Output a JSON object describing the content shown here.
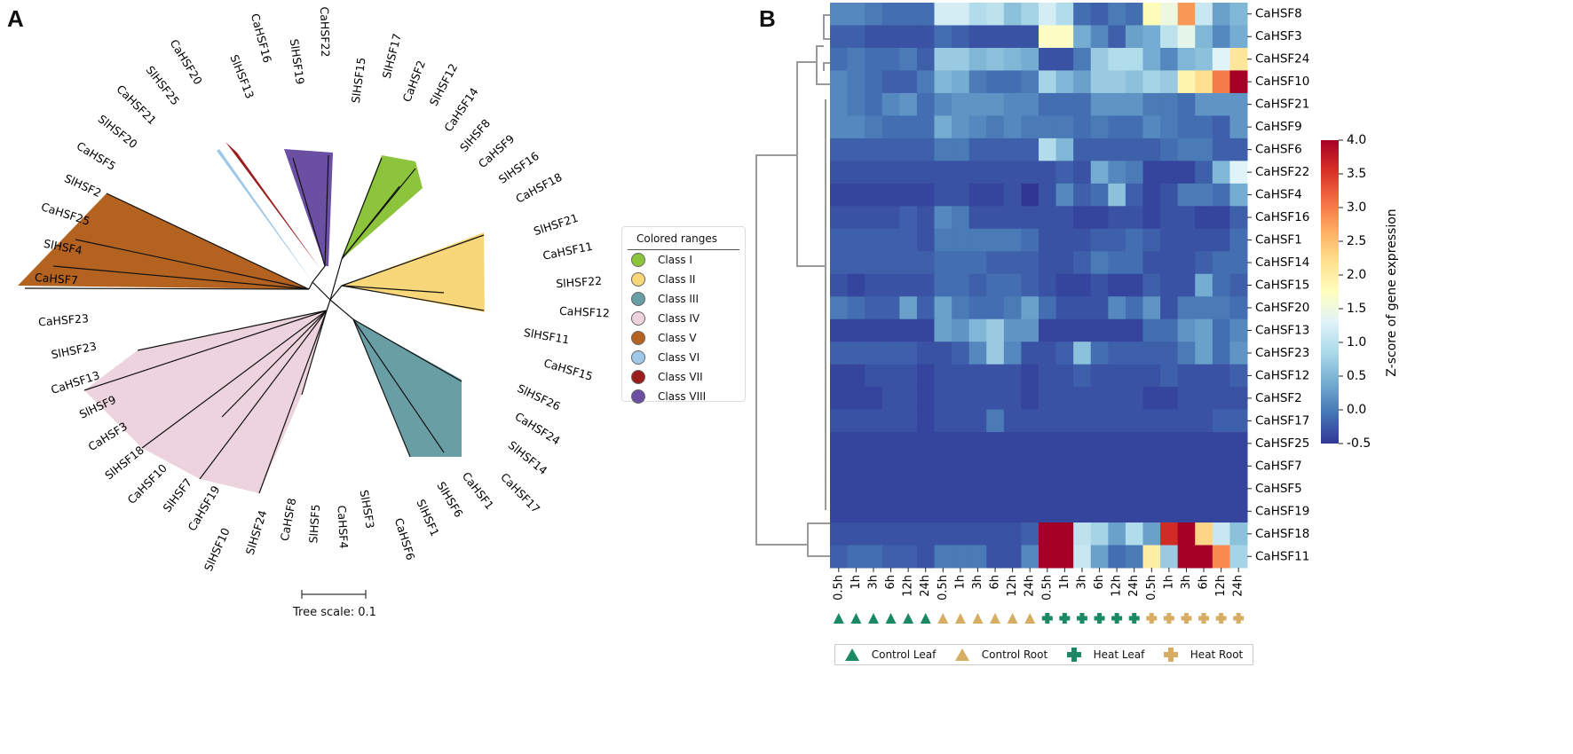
{
  "panels": {
    "a": "A",
    "b": "B"
  },
  "tree": {
    "scale_label": "Tree scale: 0.1",
    "legend_title": "Colored ranges",
    "classes": [
      {
        "label": "Class I",
        "color": "#8cc43c"
      },
      {
        "label": "Class II",
        "color": "#f7d77a"
      },
      {
        "label": "Class III",
        "color": "#6a9ea5"
      },
      {
        "label": "Class IV",
        "color": "#ecd3dd"
      },
      {
        "label": "Class V",
        "color": "#b3631f"
      },
      {
        "label": "Class VI",
        "color": "#9fc8e8"
      },
      {
        "label": "Class VII",
        "color": "#9b1c1c"
      },
      {
        "label": "Class VIII",
        "color": "#6a4fa3"
      }
    ],
    "leaves": [
      "CaHSF22",
      "SlHSF19",
      "CaHSF16",
      "SlHSF13",
      "CaHSF20",
      "SlHSF25",
      "CaHSF21",
      "SlHSF20",
      "CaHSF5",
      "SlHSF2",
      "CaHSF25",
      "SlHSF4",
      "CaHSF7",
      "SlHSF15",
      "SlHSF17",
      "CaHSF2",
      "SlHSF12",
      "CaHSF14",
      "SlHSF8",
      "CaHSF9",
      "SlHSF16",
      "CaHSF18",
      "SlHSF21",
      "CaHSF11",
      "SlHSF22",
      "CaHSF12",
      "SlHSF11",
      "CaHSF15",
      "SlHSF26",
      "CaHSF24",
      "SlHSF14",
      "CaHSF17",
      "CaHSF1",
      "SlHSF6",
      "SlHSF1",
      "CaHSF6",
      "SlHSF3",
      "CaHSF4",
      "CaHSF8",
      "SlHSF5",
      "SlHSF24",
      "SlHSF10",
      "CaHSF19",
      "SlHSF7",
      "CaHSF10",
      "SlHSF18",
      "CaHSF3",
      "SlHSF9",
      "CaHSF13",
      "SlHSF23",
      "CaHSF23"
    ]
  },
  "chart_data": {
    "type": "heatmap",
    "colorbar_label": "Z-score of gene expression",
    "vmin": -0.5,
    "vmax": 4.0,
    "colorbar_ticks": [
      "4.0",
      "3.5",
      "3.0",
      "2.5",
      "2.0",
      "1.5",
      "1.0",
      "0.5",
      "0.0",
      "-0.5"
    ],
    "colormap": [
      "#313695",
      "#4575b4",
      "#74add1",
      "#abd9e9",
      "#e0f3f8",
      "#ffffbf",
      "#fee090",
      "#fdae61",
      "#f46d43",
      "#d73027",
      "#a50026"
    ],
    "columns": [
      "0.5h",
      "1h",
      "3h",
      "6h",
      "12h",
      "24h",
      "0.5h",
      "1h",
      "3h",
      "6h",
      "12h",
      "24h",
      "0.5h",
      "1h",
      "3h",
      "6h",
      "12h",
      "24h",
      "0.5h",
      "1h",
      "3h",
      "6h",
      "12h",
      "24h"
    ],
    "column_groups": [
      0,
      0,
      0,
      0,
      0,
      0,
      1,
      1,
      1,
      1,
      1,
      1,
      2,
      2,
      2,
      2,
      2,
      2,
      3,
      3,
      3,
      3,
      3,
      3
    ],
    "groups": [
      {
        "label": "Control Leaf",
        "marker": "triangle",
        "color": "#1b8a64"
      },
      {
        "label": "Control Root",
        "marker": "triangle",
        "color": "#d6ad62"
      },
      {
        "label": "Heat Leaf",
        "marker": "cross",
        "color": "#1b8a64"
      },
      {
        "label": "Heat Root",
        "marker": "cross",
        "color": "#d6ad62"
      }
    ],
    "rows": [
      "CaHSF8",
      "CaHSF3",
      "CaHSF24",
      "CaHSF10",
      "CaHSF21",
      "CaHSF9",
      "CaHSF6",
      "CaHSF22",
      "CaHSF4",
      "CaHSF16",
      "CaHSF1",
      "CaHSF14",
      "CaHSF15",
      "CaHSF20",
      "CaHSF13",
      "CaHSF23",
      "CaHSF12",
      "CaHSF2",
      "CaHSF17",
      "CaHSF25",
      "CaHSF7",
      "CaHSF5",
      "CaHSF19",
      "CaHSF18",
      "CaHSF11"
    ],
    "values": [
      [
        0.1,
        0.1,
        0,
        -0.1,
        -0.1,
        -0.1,
        1.2,
        1.2,
        0.9,
        1.0,
        0.6,
        0.8,
        1.2,
        0.9,
        -0.1,
        -0.2,
        0,
        -0.1,
        1.8,
        1.5,
        2.8,
        1.1,
        0.3,
        0.5
      ],
      [
        -0.2,
        -0.2,
        -0.3,
        -0.3,
        -0.3,
        -0.3,
        -0.1,
        -0.2,
        -0.3,
        -0.3,
        -0.3,
        -0.3,
        1.7,
        1.7,
        0.4,
        0.1,
        -0.2,
        0.3,
        0.4,
        1.0,
        1.4,
        0.5,
        0.1,
        0.4
      ],
      [
        -0.1,
        0,
        -0.1,
        -0.1,
        0,
        -0.2,
        0.7,
        0.7,
        0.5,
        0.6,
        0.5,
        0.4,
        -0.3,
        -0.3,
        0,
        0.7,
        0.9,
        0.9,
        0.4,
        0.1,
        0.5,
        0.6,
        1.3,
        2.1
      ],
      [
        0.1,
        0,
        -0.1,
        -0.2,
        -0.2,
        0,
        0.5,
        0.4,
        0,
        -0.1,
        -0.1,
        0,
        0.8,
        0.5,
        0.3,
        0.7,
        0.7,
        0.6,
        0.8,
        0.7,
        1.9,
        2.2,
        3.0,
        4.0
      ],
      [
        0.1,
        0,
        -0.1,
        0.1,
        0.2,
        -0.1,
        0.1,
        0.2,
        0.2,
        0.2,
        0.1,
        0.1,
        -0.1,
        -0.1,
        -0.1,
        0.2,
        0.2,
        0.2,
        0,
        0,
        -0.1,
        0.2,
        0.2,
        0.2
      ],
      [
        0.1,
        0.1,
        0,
        -0.1,
        -0.1,
        -0.1,
        0.4,
        0.2,
        0.1,
        0,
        0.1,
        0,
        0,
        0,
        -0.1,
        0,
        -0.1,
        -0.1,
        0.1,
        0,
        -0.1,
        -0.1,
        -0.2,
        0.2
      ],
      [
        -0.2,
        -0.2,
        -0.2,
        -0.2,
        -0.2,
        -0.2,
        0,
        0,
        -0.2,
        -0.2,
        -0.2,
        -0.2,
        0.9,
        0.5,
        -0.2,
        -0.2,
        -0.2,
        -0.2,
        -0.2,
        -0.1,
        0,
        0,
        -0.2,
        -0.2
      ],
      [
        -0.3,
        -0.3,
        -0.3,
        -0.3,
        -0.3,
        -0.3,
        -0.3,
        -0.3,
        -0.3,
        -0.3,
        -0.3,
        -0.3,
        -0.3,
        -0.2,
        -0.3,
        0.4,
        0.1,
        0,
        -0.4,
        -0.4,
        -0.4,
        -0.2,
        0.5,
        1.3
      ],
      [
        -0.4,
        -0.4,
        -0.4,
        -0.4,
        -0.4,
        -0.4,
        -0.3,
        -0.3,
        -0.4,
        -0.4,
        -0.3,
        -0.5,
        -0.3,
        0.1,
        -0.2,
        -0.1,
        0.6,
        -0.2,
        -0.4,
        -0.3,
        0,
        0,
        -0.1,
        0.4
      ],
      [
        -0.3,
        -0.3,
        -0.3,
        -0.3,
        -0.2,
        -0.3,
        0.1,
        0,
        -0.3,
        -0.3,
        -0.3,
        -0.3,
        -0.3,
        -0.3,
        -0.4,
        -0.4,
        -0.3,
        -0.3,
        -0.4,
        -0.3,
        -0.3,
        -0.4,
        -0.4,
        -0.2
      ],
      [
        -0.2,
        -0.2,
        -0.2,
        -0.2,
        -0.2,
        -0.3,
        0,
        0,
        0,
        0,
        0,
        -0.1,
        -0.3,
        -0.3,
        -0.3,
        -0.2,
        -0.2,
        -0.1,
        -0.2,
        -0.3,
        -0.3,
        -0.3,
        -0.3,
        -0.1
      ],
      [
        -0.2,
        -0.2,
        -0.2,
        -0.2,
        -0.2,
        -0.2,
        -0.1,
        -0.1,
        -0.1,
        -0.2,
        -0.2,
        -0.2,
        -0.3,
        -0.3,
        -0.2,
        0,
        -0.1,
        -0.1,
        -0.3,
        -0.3,
        -0.3,
        -0.2,
        -0.1,
        -0.1
      ],
      [
        -0.3,
        -0.4,
        -0.3,
        -0.3,
        -0.3,
        -0.3,
        -0.1,
        -0.1,
        -0.2,
        -0.1,
        -0.1,
        -0.2,
        -0.3,
        -0.4,
        -0.4,
        -0.3,
        -0.4,
        -0.4,
        -0.2,
        -0.3,
        -0.3,
        0.4,
        -0.1,
        -0.2
      ],
      [
        0,
        -0.1,
        -0.2,
        -0.2,
        0.3,
        -0.2,
        0.3,
        0,
        -0.1,
        -0.1,
        0,
        0.3,
        -0.1,
        -0.3,
        -0.3,
        -0.3,
        0.1,
        -0.1,
        0.2,
        -0.3,
        0,
        0,
        0,
        -0.1
      ],
      [
        -0.4,
        -0.4,
        -0.4,
        -0.4,
        -0.4,
        -0.4,
        0.3,
        0.2,
        0.5,
        0.7,
        0.2,
        0.2,
        -0.4,
        -0.4,
        -0.4,
        -0.4,
        -0.4,
        -0.4,
        -0.1,
        -0.1,
        0.2,
        0.3,
        -0.1,
        0.1
      ],
      [
        -0.2,
        -0.2,
        -0.2,
        -0.2,
        -0.2,
        -0.3,
        -0.3,
        -0.2,
        0.1,
        0.7,
        0.1,
        -0.3,
        -0.3,
        -0.2,
        0.6,
        -0.1,
        -0.2,
        -0.2,
        -0.2,
        -0.2,
        0,
        0.3,
        -0.1,
        0.2
      ],
      [
        -0.4,
        -0.4,
        -0.3,
        -0.3,
        -0.3,
        -0.4,
        -0.3,
        -0.3,
        -0.3,
        -0.3,
        -0.3,
        -0.4,
        -0.3,
        -0.3,
        -0.2,
        -0.3,
        -0.3,
        -0.3,
        -0.3,
        -0.2,
        -0.3,
        -0.3,
        -0.3,
        -0.2
      ],
      [
        -0.4,
        -0.4,
        -0.4,
        -0.3,
        -0.3,
        -0.4,
        -0.3,
        -0.3,
        -0.3,
        -0.3,
        -0.3,
        -0.4,
        -0.3,
        -0.3,
        -0.3,
        -0.3,
        -0.3,
        -0.3,
        -0.4,
        -0.4,
        -0.3,
        -0.3,
        -0.3,
        -0.3
      ],
      [
        -0.3,
        -0.3,
        -0.3,
        -0.3,
        -0.3,
        -0.4,
        -0.3,
        -0.3,
        -0.3,
        0,
        -0.3,
        -0.3,
        -0.3,
        -0.3,
        -0.3,
        -0.3,
        -0.3,
        -0.3,
        -0.3,
        -0.3,
        -0.3,
        -0.3,
        -0.2,
        -0.2
      ],
      [
        -0.4,
        -0.4,
        -0.4,
        -0.4,
        -0.4,
        -0.4,
        -0.4,
        -0.4,
        -0.4,
        -0.4,
        -0.4,
        -0.4,
        -0.4,
        -0.4,
        -0.4,
        -0.4,
        -0.4,
        -0.4,
        -0.4,
        -0.4,
        -0.4,
        -0.4,
        -0.4,
        -0.4
      ],
      [
        -0.4,
        -0.4,
        -0.4,
        -0.4,
        -0.4,
        -0.4,
        -0.4,
        -0.4,
        -0.4,
        -0.4,
        -0.4,
        -0.4,
        -0.4,
        -0.4,
        -0.4,
        -0.4,
        -0.4,
        -0.4,
        -0.4,
        -0.4,
        -0.4,
        -0.4,
        -0.4,
        -0.4
      ],
      [
        -0.4,
        -0.4,
        -0.4,
        -0.4,
        -0.4,
        -0.4,
        -0.4,
        -0.4,
        -0.4,
        -0.4,
        -0.4,
        -0.4,
        -0.4,
        -0.4,
        -0.4,
        -0.4,
        -0.4,
        -0.4,
        -0.4,
        -0.4,
        -0.4,
        -0.4,
        -0.4,
        -0.4
      ],
      [
        -0.4,
        -0.4,
        -0.4,
        -0.4,
        -0.4,
        -0.4,
        -0.4,
        -0.4,
        -0.4,
        -0.4,
        -0.4,
        -0.4,
        -0.4,
        -0.4,
        -0.4,
        -0.4,
        -0.4,
        -0.4,
        -0.4,
        -0.4,
        -0.4,
        -0.4,
        -0.4,
        -0.4
      ],
      [
        -0.3,
        -0.3,
        -0.3,
        -0.3,
        -0.3,
        -0.3,
        -0.3,
        -0.3,
        -0.3,
        -0.3,
        -0.3,
        -0.2,
        4.0,
        4.0,
        1.0,
        0.8,
        0.3,
        0.9,
        0.3,
        3.6,
        4.0,
        2.3,
        1.1,
        0.6
      ],
      [
        -0.2,
        -0.1,
        -0.1,
        -0.2,
        -0.2,
        -0.3,
        0,
        0,
        0,
        -0.3,
        -0.3,
        0.1,
        4.0,
        4.0,
        1.1,
        0.3,
        -0.1,
        0,
        2.0,
        0.7,
        4.0,
        4.0,
        2.9,
        0.8
      ]
    ]
  }
}
